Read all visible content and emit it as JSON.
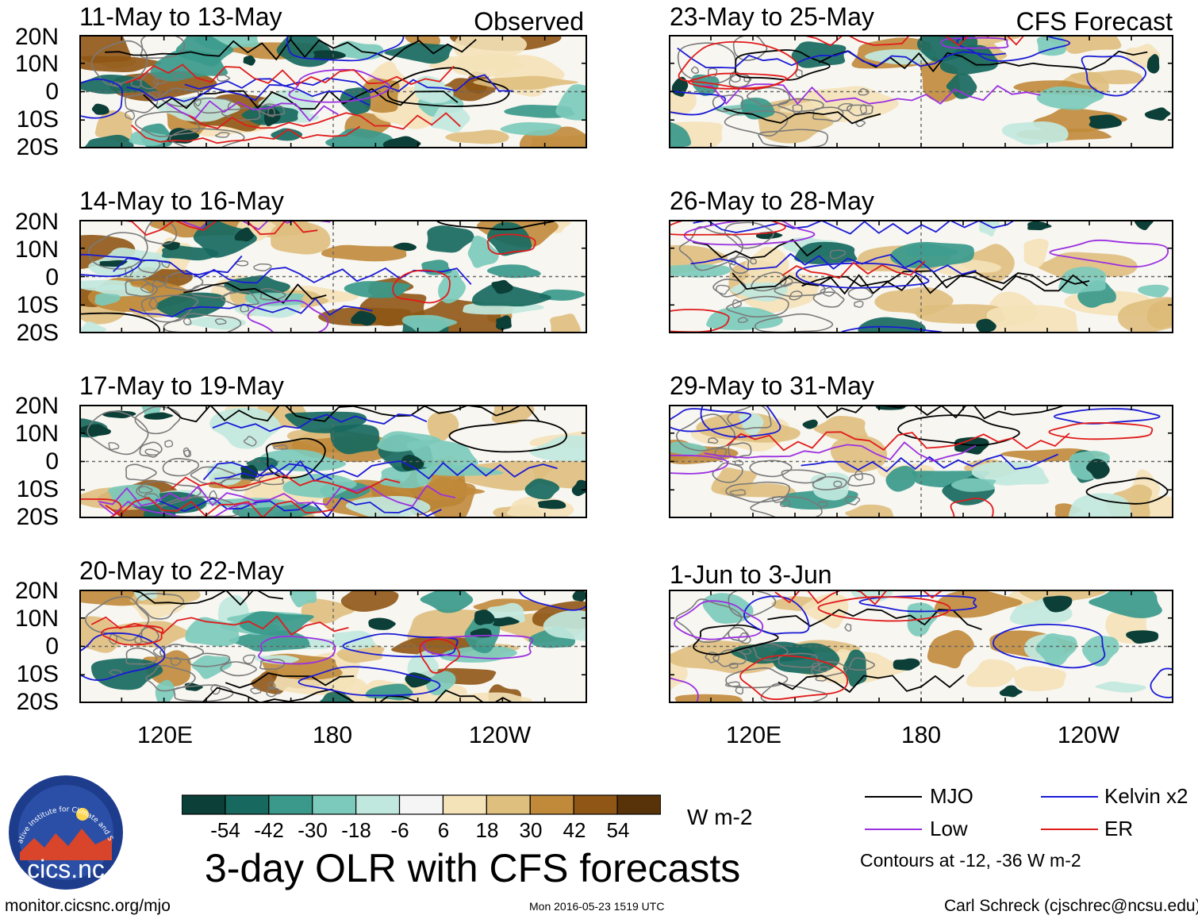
{
  "title": "3-day OLR with CFS forecasts",
  "columns": {
    "left_tag": "Observed",
    "right_tag": "CFS Forecast"
  },
  "panels": [
    {
      "title": "11-May to 13-May",
      "tag": "Observed",
      "type": "observed"
    },
    {
      "title": "14-May to 16-May",
      "type": "observed"
    },
    {
      "title": "17-May to 19-May",
      "type": "observed"
    },
    {
      "title": "20-May to 22-May",
      "type": "observed"
    },
    {
      "title": "23-May to 25-May",
      "tag": "CFS Forecast",
      "type": "forecast"
    },
    {
      "title": "26-May to 28-May",
      "type": "forecast"
    },
    {
      "title": "29-May to 31-May",
      "type": "forecast"
    },
    {
      "title": "1-Jun to 3-Jun",
      "type": "forecast"
    }
  ],
  "lat_labels": [
    "20N",
    "10N",
    "0",
    "10S",
    "20S"
  ],
  "lon_labels": [
    "120E",
    "180",
    "120W"
  ],
  "colorbar": {
    "labels": [
      "-54",
      "-42",
      "-30",
      "-18",
      "-6",
      "6",
      "18",
      "30",
      "42",
      "54"
    ],
    "colors": [
      "#0b3f37",
      "#17695f",
      "#3a998b",
      "#7ccabb",
      "#c1e8de",
      "#f5f5f5",
      "#f4e2b8",
      "#dfbf7e",
      "#c08a3a",
      "#8f5615",
      "#583208"
    ],
    "units": "W m-2"
  },
  "legend": {
    "items": [
      {
        "label": "MJO",
        "color": "#000000"
      },
      {
        "label": "Kelvin x2",
        "color": "#1a1ad6"
      },
      {
        "label": "Low",
        "color": "#9b30e0"
      },
      {
        "label": "ER",
        "color": "#e01b1b"
      }
    ],
    "note": "Contours at -12, -36 W m-2"
  },
  "logo": {
    "ring_text": "Cooperative Institute for Climate and Satellites",
    "name": "cics.nc"
  },
  "footer": {
    "left": "monitor.cicsnc.org/mjo",
    "center": "Mon 2016-05-23 1519 UTC",
    "right": "Carl Schreck (cjschrec@ncsu.edu)"
  }
}
